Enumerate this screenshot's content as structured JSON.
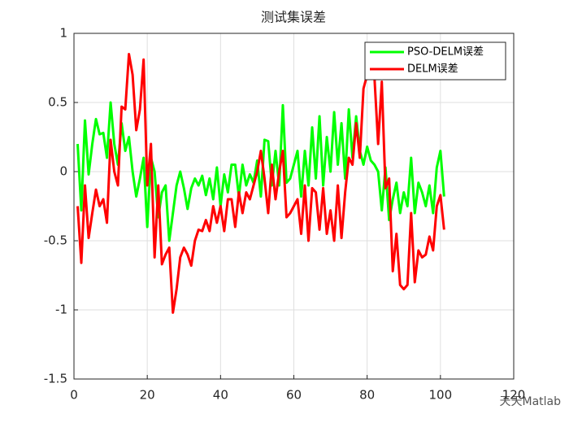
{
  "chart_data": {
    "type": "line",
    "title": "测试集误差",
    "x": [
      1,
      2,
      3,
      4,
      5,
      6,
      7,
      8,
      9,
      10,
      11,
      12,
      13,
      14,
      15,
      16,
      17,
      18,
      19,
      20,
      21,
      22,
      23,
      24,
      25,
      26,
      27,
      28,
      29,
      30,
      31,
      32,
      33,
      34,
      35,
      36,
      37,
      38,
      39,
      40,
      41,
      42,
      43,
      44,
      45,
      46,
      47,
      48,
      49,
      50,
      51,
      52,
      53,
      54,
      55,
      56,
      57,
      58,
      59,
      60,
      61,
      62,
      63,
      64,
      65,
      66,
      67,
      68,
      69,
      70,
      71,
      72,
      73,
      74,
      75,
      76,
      77,
      78,
      79,
      80,
      81,
      82,
      83,
      84,
      85,
      86,
      87,
      88,
      89,
      90,
      91,
      92,
      93,
      94,
      95,
      96,
      97,
      98,
      99,
      100,
      101
    ],
    "series": [
      {
        "name": "PSO-DELM误差",
        "color": "#00ff00",
        "values": [
          0.2,
          -0.28,
          0.37,
          -0.02,
          0.2,
          0.38,
          0.27,
          0.28,
          0.1,
          0.5,
          0.2,
          0.05,
          0.35,
          0.15,
          0.25,
          0.0,
          -0.18,
          -0.05,
          0.1,
          -0.4,
          0.1,
          0.0,
          -0.33,
          -0.15,
          -0.1,
          -0.5,
          -0.3,
          -0.1,
          0.0,
          -0.12,
          -0.27,
          -0.12,
          -0.05,
          -0.1,
          -0.03,
          -0.17,
          -0.05,
          -0.2,
          0.03,
          -0.25,
          -0.02,
          -0.15,
          0.05,
          0.05,
          -0.18,
          0.05,
          -0.1,
          -0.02,
          -0.08,
          0.08,
          -0.18,
          0.23,
          0.22,
          -0.1,
          0.15,
          -0.1,
          0.48,
          -0.08,
          -0.05,
          0.05,
          0.15,
          -0.18,
          0.15,
          -0.1,
          0.32,
          -0.05,
          0.4,
          -0.1,
          0.25,
          0.0,
          0.43,
          0.05,
          0.35,
          -0.05,
          0.45,
          0.1,
          0.4,
          0.15,
          0.05,
          0.18,
          0.08,
          0.05,
          0.0,
          -0.28,
          0.03,
          -0.35,
          -0.2,
          -0.08,
          -0.3,
          -0.15,
          -0.25,
          0.1,
          -0.3,
          -0.08,
          -0.15,
          -0.25,
          -0.1,
          -0.3,
          0.03,
          0.15,
          -0.18
        ]
      },
      {
        "name": "DELM误差",
        "color": "#ff0000",
        "values": [
          -0.25,
          -0.66,
          -0.1,
          -0.48,
          -0.3,
          -0.13,
          -0.25,
          -0.2,
          -0.37,
          0.23,
          0.0,
          -0.1,
          0.47,
          0.45,
          0.85,
          0.7,
          0.3,
          0.45,
          0.81,
          -0.1,
          0.2,
          -0.62,
          -0.1,
          -0.67,
          -0.6,
          -0.55,
          -1.02,
          -0.85,
          -0.62,
          -0.55,
          -0.6,
          -0.68,
          -0.5,
          -0.42,
          -0.43,
          -0.35,
          -0.43,
          -0.25,
          -0.37,
          -0.25,
          -0.43,
          -0.2,
          -0.2,
          -0.4,
          -0.15,
          -0.3,
          -0.15,
          -0.2,
          -0.1,
          0.0,
          0.15,
          -0.05,
          -0.3,
          0.05,
          -0.2,
          0.0,
          0.15,
          -0.33,
          -0.3,
          -0.25,
          -0.2,
          -0.45,
          -0.1,
          -0.5,
          -0.12,
          -0.15,
          -0.42,
          -0.12,
          -0.45,
          -0.28,
          -0.5,
          -0.1,
          -0.48,
          -0.15,
          0.1,
          0.05,
          0.35,
          0.1,
          0.6,
          0.7,
          0.68,
          0.68,
          0.2,
          0.65,
          -0.12,
          -0.05,
          -0.72,
          -0.45,
          -0.82,
          -0.85,
          -0.82,
          -0.3,
          -0.8,
          -0.57,
          -0.62,
          -0.6,
          -0.47,
          -0.57,
          -0.25,
          -0.17,
          -0.42
        ]
      }
    ],
    "xlim": [
      0,
      120
    ],
    "xticks": [
      0,
      20,
      40,
      60,
      80,
      100,
      120
    ],
    "ylim": [
      -1.5,
      1
    ],
    "yticks": [
      -1.5,
      -1,
      -0.5,
      0,
      0.5,
      1
    ],
    "grid": true,
    "legend": "northeast",
    "watermark": "天天Matlab"
  }
}
